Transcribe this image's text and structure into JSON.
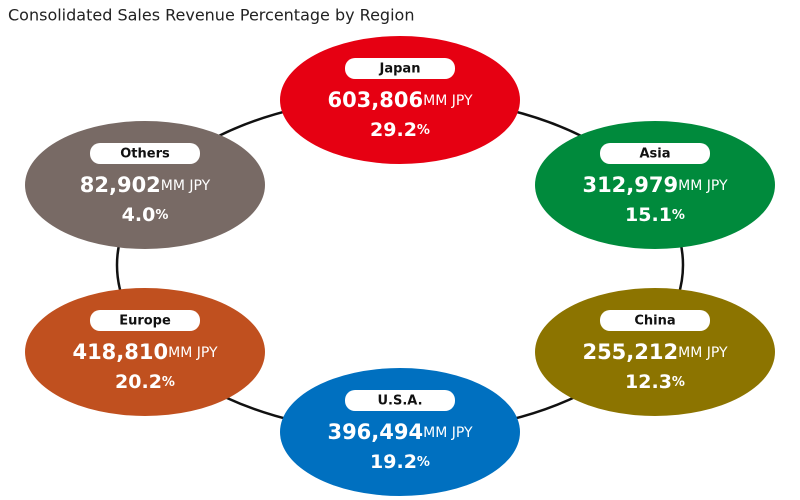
{
  "title": "Consolidated Sales Revenue Percentage by Region",
  "amount_unit": "MM JPY",
  "share_unit": "%",
  "nodes": [
    {
      "label": "Japan",
      "amount": "603,806",
      "share": "29.2",
      "color": "#e60012"
    },
    {
      "label": "Asia",
      "amount": "312,979",
      "share": "15.1",
      "color": "#008a3c"
    },
    {
      "label": "China",
      "amount": "255,212",
      "share": "12.3",
      "color": "#8c7400"
    },
    {
      "label": "U.S.A.",
      "amount": "396,494",
      "share": "19.2",
      "color": "#0070c0"
    },
    {
      "label": "Europe",
      "amount": "418,810",
      "share": "20.2",
      "color": "#c0501f"
    },
    {
      "label": "Others",
      "amount": "82,902",
      "share": "4.0",
      "color": "#786a65"
    }
  ]
}
